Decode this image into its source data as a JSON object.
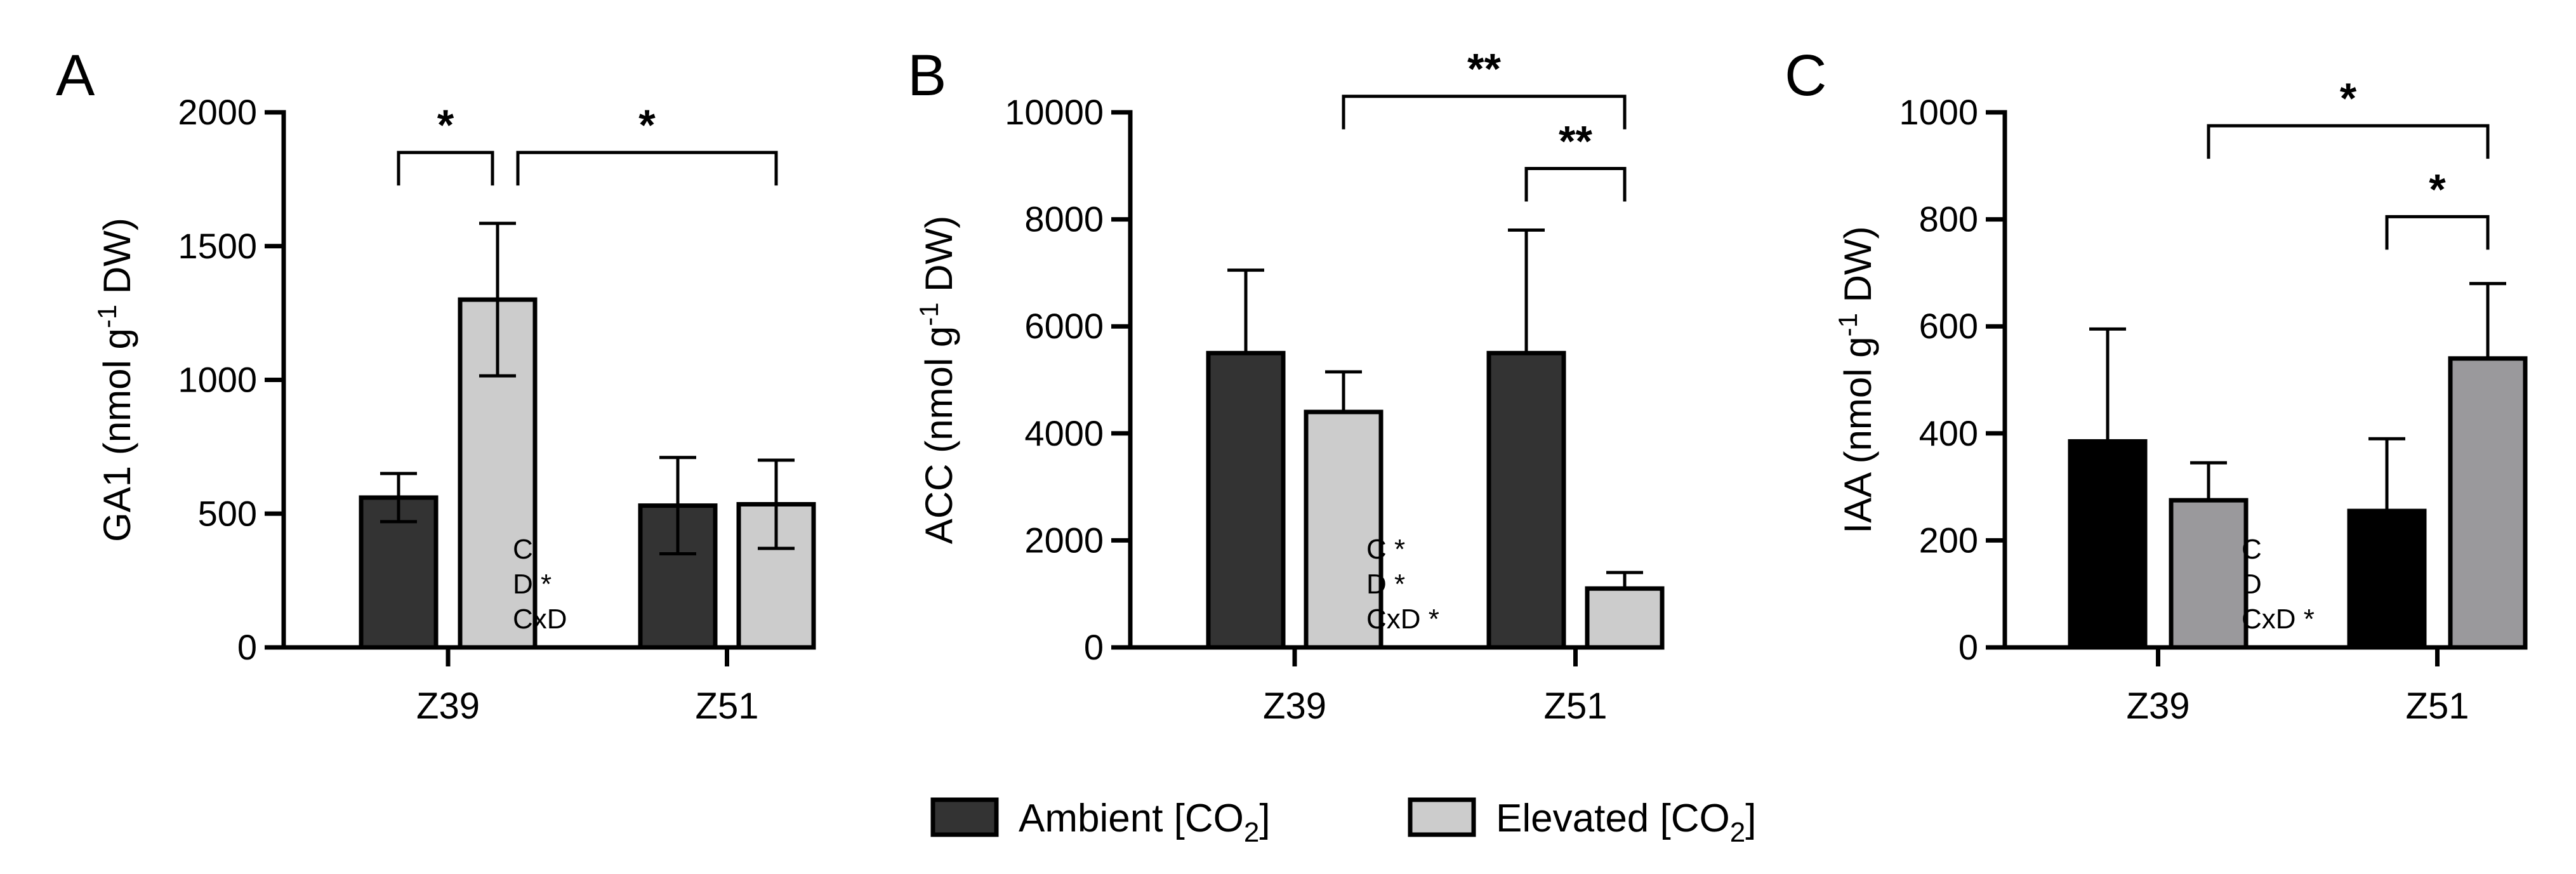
{
  "legend": [
    {
      "label": "Ambient [CO",
      "sub": "2",
      "close": "]"
    },
    {
      "label": "Elevated [CO",
      "sub": "2",
      "close": "]"
    }
  ],
  "chart_data": [
    {
      "type": "bar",
      "panel": "A",
      "ylabel": {
        "pre": "GA1 (nmol g",
        "sup": "-1",
        "post": " DW)"
      },
      "ylim": [
        0,
        2000
      ],
      "yticks": [
        "0",
        "500",
        "1000",
        "1500",
        "2000"
      ],
      "ytick_values": [
        0,
        500,
        1000,
        1500,
        2000
      ],
      "categories": [
        "Z39",
        "Z51"
      ],
      "colors": [
        "#333333",
        "#cccccc"
      ],
      "series": [
        {
          "name": "Ambient [CO2]",
          "values": [
            560,
            530
          ],
          "errors": [
            90,
            180
          ]
        },
        {
          "name": "Elevated [CO2]",
          "values": [
            1300,
            535
          ],
          "errors": [
            285,
            165
          ]
        }
      ],
      "stats": [
        "C",
        "D *",
        "CxD"
      ],
      "significance": [
        {
          "from": [
            0,
            0
          ],
          "to": [
            0,
            1
          ],
          "label": "*",
          "level": 1850
        },
        {
          "from": [
            0,
            1
          ],
          "to": [
            1,
            1
          ],
          "label": "*",
          "level": 1850
        }
      ]
    },
    {
      "type": "bar",
      "panel": "B",
      "ylabel": {
        "pre": "ACC (nmol g",
        "sup": "-1",
        "post": " DW)"
      },
      "ylim": [
        0,
        10000
      ],
      "yticks": [
        "0",
        "2000",
        "4000",
        "6000",
        "8000",
        "10000"
      ],
      "ytick_values": [
        0,
        2000,
        4000,
        6000,
        8000,
        10000
      ],
      "categories": [
        "Z39",
        "Z51"
      ],
      "colors": [
        "#333333",
        "#cccccc"
      ],
      "series": [
        {
          "name": "Ambient [CO2]",
          "values": [
            5500,
            5500
          ],
          "errors": [
            1550,
            2300
          ]
        },
        {
          "name": "Elevated [CO2]",
          "values": [
            4400,
            1100
          ],
          "errors": [
            750,
            300
          ]
        }
      ],
      "stats": [
        "C *",
        "D *",
        "CxD *"
      ],
      "significance": [
        {
          "from": [
            0,
            1
          ],
          "to": [
            1,
            1
          ],
          "label": "**",
          "level": 10300
        },
        {
          "from": [
            1,
            0
          ],
          "to": [
            1,
            1
          ],
          "label": "**",
          "level": 8950
        }
      ]
    },
    {
      "type": "bar",
      "panel": "C",
      "ylabel": {
        "pre": "IAA (nmol g",
        "sup": "-1",
        "post": " DW)"
      },
      "ylim": [
        0,
        1000
      ],
      "yticks": [
        "0",
        "200",
        "400",
        "600",
        "800",
        "1000"
      ],
      "ytick_values": [
        0,
        200,
        400,
        600,
        800,
        1000
      ],
      "categories": [
        "Z39",
        "Z51"
      ],
      "colors": [
        "#000000",
        "#9a999c"
      ],
      "series": [
        {
          "name": "Ambient [CO2]",
          "values": [
            385,
            255
          ],
          "errors": [
            210,
            135
          ]
        },
        {
          "name": "Elevated [CO2]",
          "values": [
            275,
            540
          ],
          "errors": [
            70,
            140
          ]
        }
      ],
      "stats": [
        "C",
        "D",
        "CxD *"
      ],
      "significance": [
        {
          "from": [
            0,
            1
          ],
          "to": [
            1,
            1
          ],
          "label": "*",
          "level": 975
        },
        {
          "from": [
            1,
            0
          ],
          "to": [
            1,
            1
          ],
          "label": "*",
          "level": 805
        }
      ]
    }
  ]
}
